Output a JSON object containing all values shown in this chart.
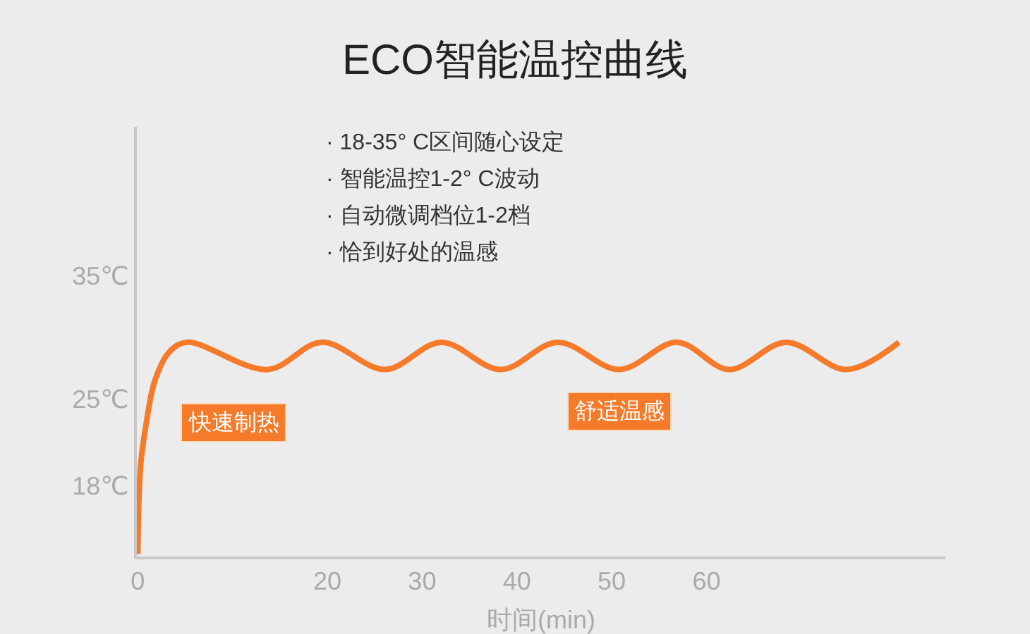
{
  "chart_data": {
    "type": "line",
    "title": "ECO智能温控曲线",
    "xlabel": "时间(min)",
    "x": [
      0.0,
      0.3,
      0.9,
      1.8,
      3.3,
      5.2,
      13.7,
      19.4,
      26.1,
      32.0,
      38.3,
      44.3,
      50.8,
      56.9,
      62.4,
      68.4,
      74.8,
      80.3
    ],
    "series": [
      {
        "color": "#f57a2a",
        "values": [
          12.5,
          19.7,
          23.1,
          26.5,
          28.8,
          29.6,
          27.4,
          29.6,
          27.4,
          29.6,
          27.4,
          29.6,
          27.4,
          29.6,
          27.4,
          29.6,
          27.4,
          29.6
        ]
      }
    ],
    "xlim": [
      -0.1,
      85.2
    ],
    "ylim": [
      12.3,
      47.0
    ],
    "xticks": [
      0,
      20,
      30,
      40,
      50,
      60
    ],
    "yticks": [
      {
        "value": 18,
        "label": "18℃"
      },
      {
        "value": 25,
        "label": "25℃"
      },
      {
        "value": 35,
        "label": "35℃"
      }
    ],
    "annotations": [
      "· 18-35° C区间随心设定",
      "· 智能温控1-2° C波动",
      "· 自动微调档位1-2档",
      "· 恰到好处的温感",
      {
        "text": "快速制热",
        "x": 0.9,
        "y": 23.1
      },
      {
        "text": "舒适温感",
        "x": 50.8,
        "y": 27.4
      }
    ],
    "marker": "none",
    "line_style": "solid"
  }
}
